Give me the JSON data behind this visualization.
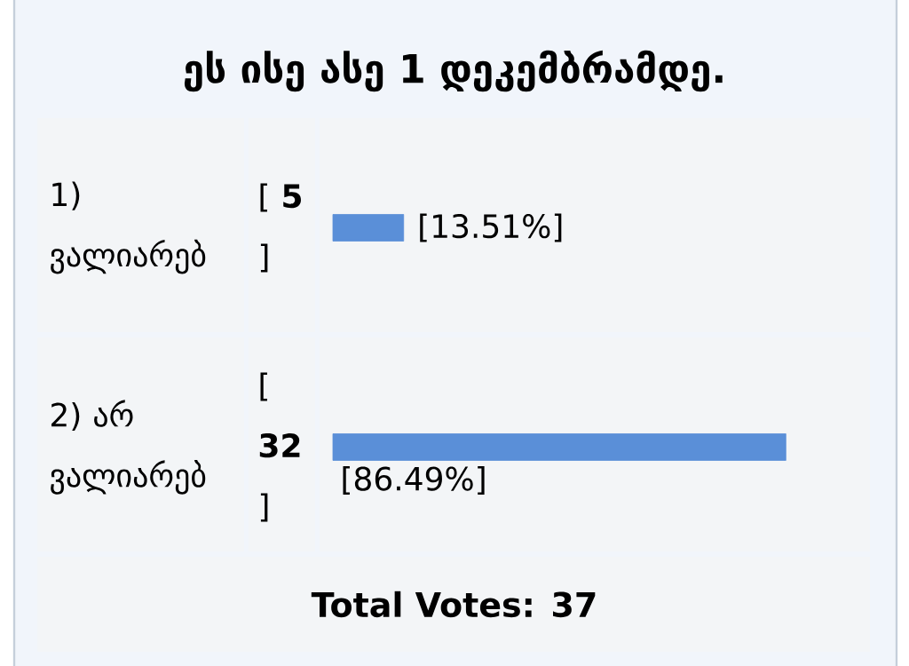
{
  "chart_data": {
    "type": "bar",
    "orientation": "horizontal",
    "title": "ეს ისე ასე 1 დეკემბრამდე.",
    "categories": [
      "1) ვალიარებ",
      "2) არ ვალიარებ"
    ],
    "values": [
      13.51,
      86.49
    ],
    "value_labels": [
      "[13.51%]",
      "[86.49%]"
    ],
    "color": "#5a8fd8",
    "tick_labels": "y",
    "annotations": [
      "[ **5** ]",
      "[ **32** ]",
      "Total Votes: 37"
    ]
  }
}
